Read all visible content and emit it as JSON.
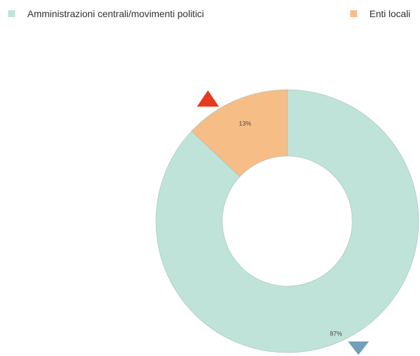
{
  "legend": {
    "items": [
      {
        "label": "Amministrazioni centrali/movimenti politici",
        "color": "#bfe3d8"
      },
      {
        "label": "Enti locali",
        "color": "#f7bd87"
      }
    ]
  },
  "chart_data": {
    "type": "pie",
    "donut": true,
    "categories": [
      "Amministrazioni centrali/movimenti politici",
      "Enti locali"
    ],
    "values": [
      87,
      13
    ],
    "value_labels": [
      "87%",
      "13%"
    ],
    "colors": [
      "#bfe3d8",
      "#f7bd87"
    ],
    "trend_markers": [
      {
        "category": "Enti locali",
        "direction": "up",
        "color": "#e53a1e"
      },
      {
        "category": "Amministrazioni centrali/movimenti politici",
        "direction": "down",
        "color": "#6f9fbb"
      }
    ]
  }
}
